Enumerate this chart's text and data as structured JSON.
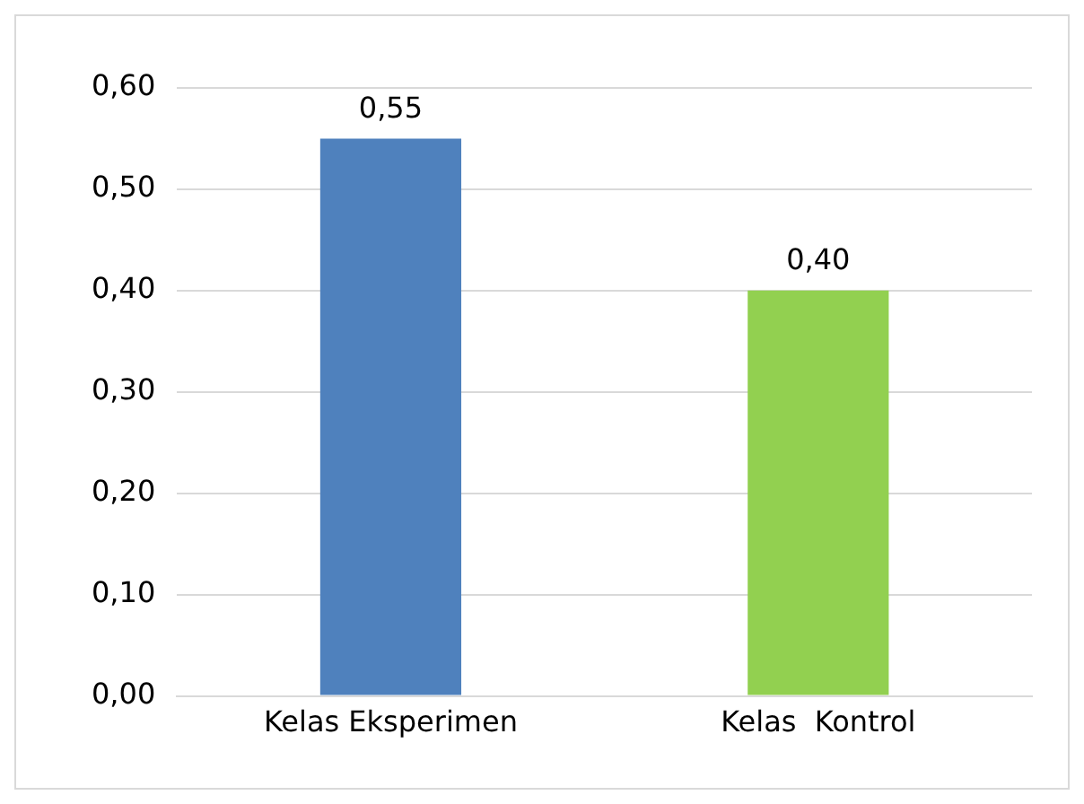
{
  "chart_data": {
    "type": "bar",
    "categories": [
      "Kelas Eksperimen",
      "Kelas  Kontrol"
    ],
    "values": [
      0.55,
      0.4
    ],
    "colors": [
      "#4f81bd",
      "#92d050"
    ],
    "value_labels": [
      "0,55",
      "0,40"
    ],
    "ylim": [
      0,
      0.6
    ],
    "yticks": [
      {
        "value": 0,
        "label": "0,00"
      },
      {
        "value": 0.1,
        "label": "0,10"
      },
      {
        "value": 0.2,
        "label": "0,20"
      },
      {
        "value": 0.3,
        "label": "0,30"
      },
      {
        "value": 0.4,
        "label": "0,40"
      },
      {
        "value": 0.5,
        "label": "0,50"
      },
      {
        "value": 0.6,
        "label": "0,60"
      }
    ],
    "grid": "y",
    "legend": false
  }
}
